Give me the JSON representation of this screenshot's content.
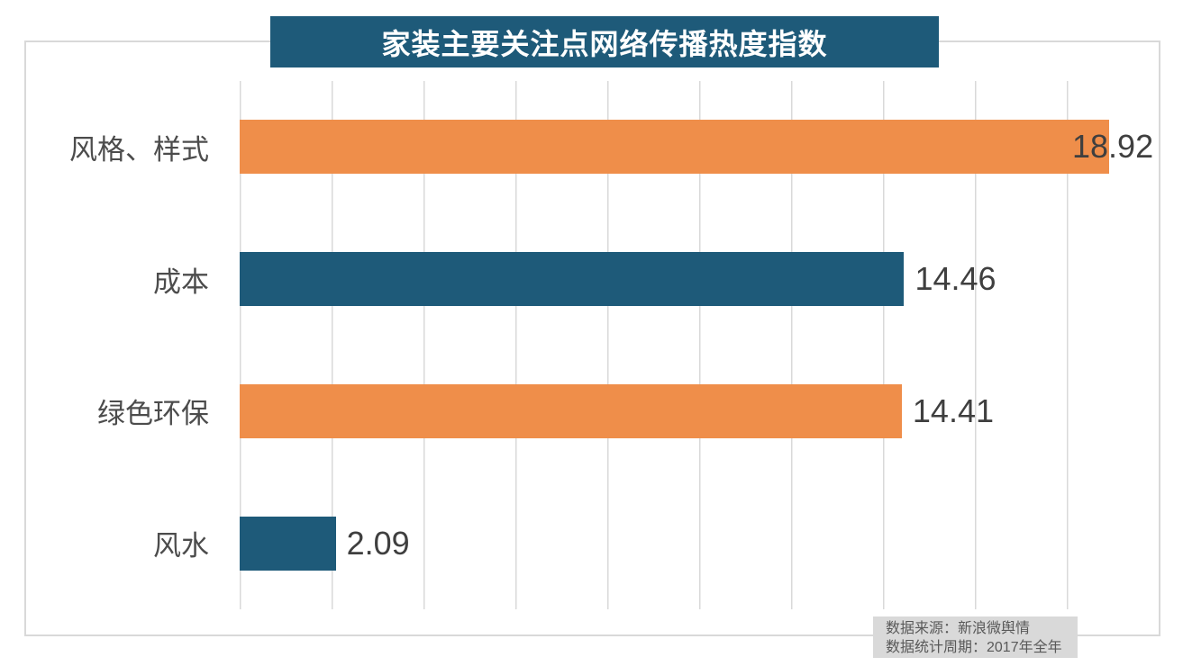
{
  "title": "家装主要关注点网络传播热度指数",
  "colors": {
    "teal": "#1e5a79",
    "orange": "#ef8e4a",
    "title_bg": "#1e5a79",
    "grid": "#d9d9d9",
    "border": "#d9d9d9",
    "source_bg": "#d9d9d9",
    "value_text": "#3f3f3f",
    "category_text": "#4c4c4c",
    "source_text": "#595959",
    "title_text": "#ffffff"
  },
  "source": {
    "line1": "数据来源：新浪微舆情",
    "line2": "数据统计周期：2017年全年"
  },
  "chart_data": {
    "type": "bar",
    "orientation": "horizontal",
    "title": "家装主要关注点网络传播热度指数",
    "categories": [
      "风格、样式",
      "成本",
      "绿色环保",
      "风水"
    ],
    "values": [
      18.92,
      14.46,
      14.41,
      2.09
    ],
    "value_labels": [
      "18.92",
      "14.46",
      "14.41",
      "2.09"
    ],
    "bar_colors": [
      "orange",
      "teal",
      "orange",
      "teal"
    ],
    "xlim": [
      0,
      20
    ],
    "grid": "vertical gridlines every 2 units",
    "legend": "none",
    "value_label_position": "outside-end, clamped inside plot when overflowing",
    "source_note": [
      "数据来源：新浪微舆情",
      "数据统计周期：2017年全年"
    ]
  }
}
